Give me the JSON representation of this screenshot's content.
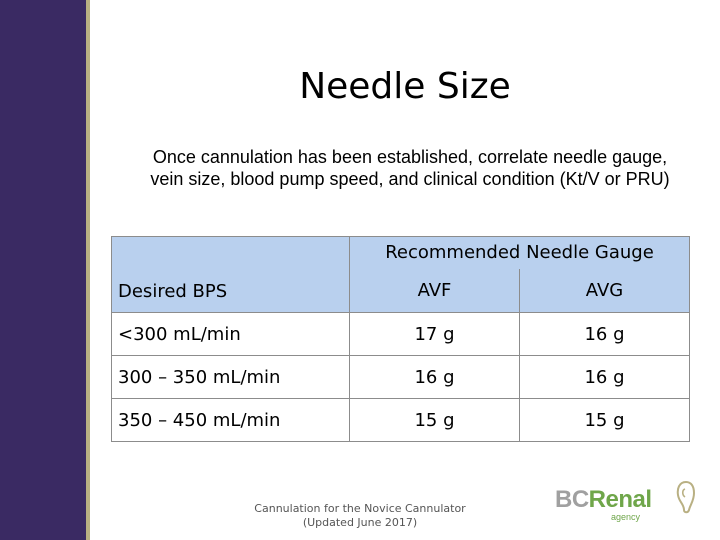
{
  "slide": {
    "title": "Needle Size",
    "subtitle": "Once cannulation has been established, correlate needle gauge, vein size, blood pump speed, and clinical condition (Kt/V or PRU)"
  },
  "table": {
    "header_group": "Recommended Needle Gauge",
    "col_bps": "Desired BPS",
    "col_avf": "AVF",
    "col_avg": "AVG",
    "rows": [
      {
        "bps": "<300 mL/min",
        "avf": "17 g",
        "avg": "16 g"
      },
      {
        "bps": "300 – 350 mL/min",
        "avf": "16 g",
        "avg": "16 g"
      },
      {
        "bps": "350 – 450 mL/min",
        "avf": "15 g",
        "avg": "15 g"
      }
    ]
  },
  "footer": {
    "line1": "Cannulation for the Novice Cannulator",
    "line2": "(Updated June 2017)"
  },
  "logo": {
    "bc": "BC",
    "renal": "Renal",
    "agency": "agency"
  },
  "colors": {
    "sidebar": "#3a2a63",
    "accent_line": "#b9b083",
    "header_fill": "#b9d0ee",
    "logo_green": "#6fa64a"
  }
}
